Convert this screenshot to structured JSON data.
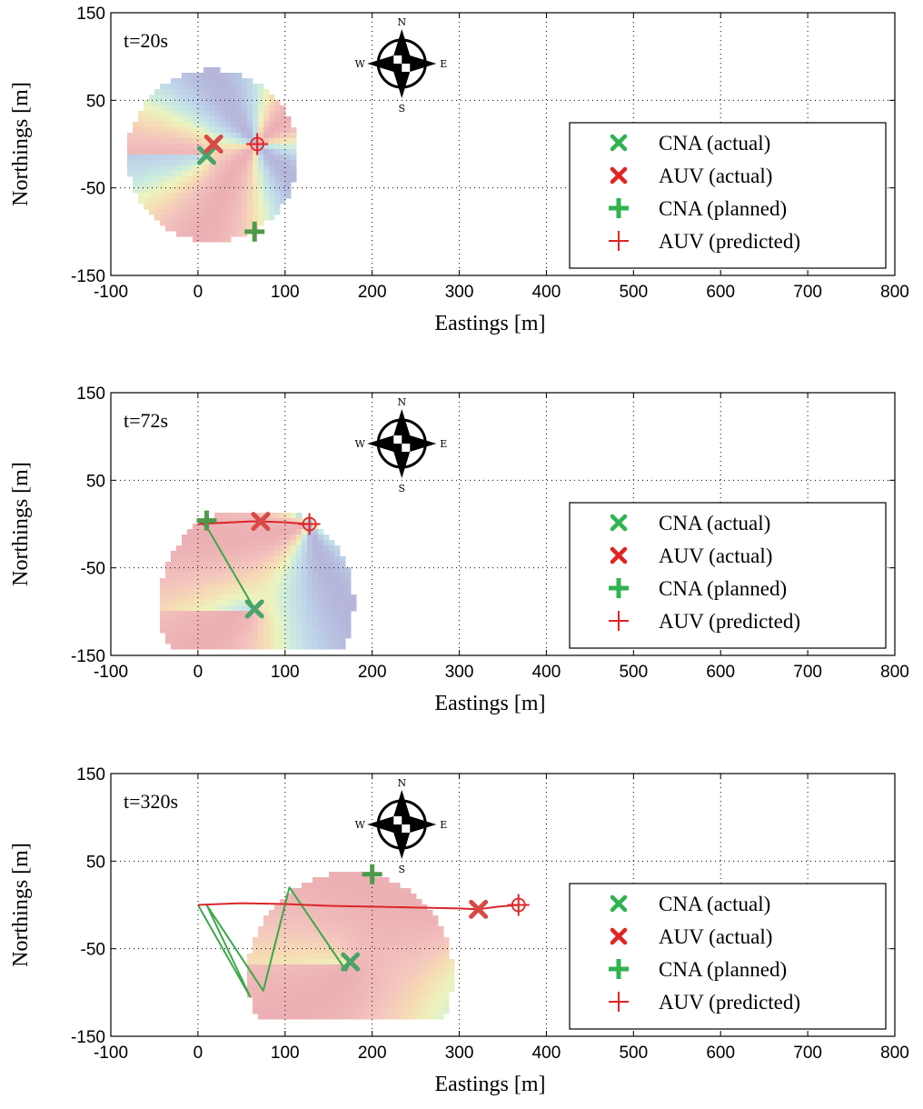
{
  "chart_data": [
    {
      "type": "scatter",
      "time_label": "t=20s",
      "xlabel": "Eastings [m]",
      "ylabel": "Northings [m]",
      "xlim": [
        -100,
        800
      ],
      "ylim": [
        -150,
        150
      ],
      "x_ticks": [
        "-100",
        "0",
        "100",
        "200",
        "300",
        "400",
        "500",
        "600",
        "700",
        "800"
      ],
      "y_ticks": [
        "-150",
        "-50",
        "50",
        "150"
      ],
      "grid": true,
      "legend_position": "right",
      "legend": [
        "CNA (actual)",
        "AUV (actual)",
        "CNA (planned)",
        "AUV (predicted)"
      ],
      "compass": {
        "N": "N",
        "E": "E",
        "S": "S",
        "W": "W"
      },
      "heatmap": {
        "center": [
          17,
          -13
        ],
        "radius": 98,
        "y_min": -112,
        "y_max": 150
      },
      "markers": {
        "cna_actual": [
          10,
          -13
        ],
        "auv_actual": [
          18,
          0
        ],
        "cna_planned": [
          65,
          -100
        ],
        "auv_predicted": [
          68,
          0
        ]
      },
      "cna_track": [],
      "auv_track": []
    },
    {
      "type": "scatter",
      "time_label": "t=72s",
      "xlabel": "Eastings [m]",
      "ylabel": "Northings [m]",
      "xlim": [
        -100,
        800
      ],
      "ylim": [
        -150,
        150
      ],
      "x_ticks": [
        "-100",
        "0",
        "100",
        "200",
        "300",
        "400",
        "500",
        "600",
        "700",
        "800"
      ],
      "y_ticks": [
        "-150",
        "-50",
        "50",
        "150"
      ],
      "grid": true,
      "legend_position": "right",
      "legend": [
        "CNA (actual)",
        "AUV (actual)",
        "CNA (planned)",
        "AUV (predicted)"
      ],
      "compass": {
        "N": "N",
        "E": "E",
        "S": "S",
        "W": "W"
      },
      "heatmap": {
        "center": [
          67,
          -90
        ],
        "radius": 112,
        "y_min": -142,
        "y_max": 12
      },
      "markers": {
        "cna_actual": [
          65,
          -97
        ],
        "auv_actual": [
          72,
          3
        ],
        "cna_planned": [
          10,
          4
        ],
        "auv_predicted": [
          128,
          0
        ]
      },
      "cna_track": [
        [
          0,
          4
        ],
        [
          10,
          -3
        ],
        [
          65,
          -97
        ]
      ],
      "auv_track": [
        [
          0,
          0
        ],
        [
          20,
          1
        ],
        [
          40,
          2
        ],
        [
          60,
          3
        ],
        [
          72,
          3
        ],
        [
          100,
          2
        ],
        [
          128,
          0
        ]
      ]
    },
    {
      "type": "scatter",
      "time_label": "t=320s",
      "xlabel": "Eastings [m]",
      "ylabel": "Northings [m]",
      "xlim": [
        -100,
        800
      ],
      "ylim": [
        -150,
        150
      ],
      "x_ticks": [
        "-100",
        "0",
        "100",
        "200",
        "300",
        "400",
        "500",
        "600",
        "700",
        "800"
      ],
      "y_ticks": [
        "-150",
        "-50",
        "50",
        "150"
      ],
      "grid": true,
      "legend_position": "right",
      "legend": [
        "CNA (actual)",
        "AUV (actual)",
        "CNA (planned)",
        "AUV (predicted)"
      ],
      "compass": {
        "N": "N",
        "E": "E",
        "S": "S",
        "W": "W"
      },
      "heatmap": {
        "center": [
          175,
          -80
        ],
        "radius": 118,
        "y_min": -130,
        "y_max": 38
      },
      "markers": {
        "cna_actual": [
          175,
          -65
        ],
        "auv_actual": [
          322,
          -5
        ],
        "cna_planned": [
          200,
          35
        ],
        "auv_predicted": [
          368,
          0
        ]
      },
      "cna_track": [
        [
          0,
          0
        ],
        [
          60,
          -105
        ],
        [
          10,
          0
        ],
        [
          75,
          -98
        ],
        [
          105,
          20
        ],
        [
          170,
          -75
        ],
        [
          175,
          -65
        ]
      ],
      "auv_track": [
        [
          0,
          0
        ],
        [
          50,
          2
        ],
        [
          100,
          1
        ],
        [
          150,
          -1
        ],
        [
          200,
          -2
        ],
        [
          250,
          -3
        ],
        [
          300,
          -4
        ],
        [
          322,
          -5
        ],
        [
          345,
          -2
        ],
        [
          368,
          0
        ]
      ]
    }
  ]
}
